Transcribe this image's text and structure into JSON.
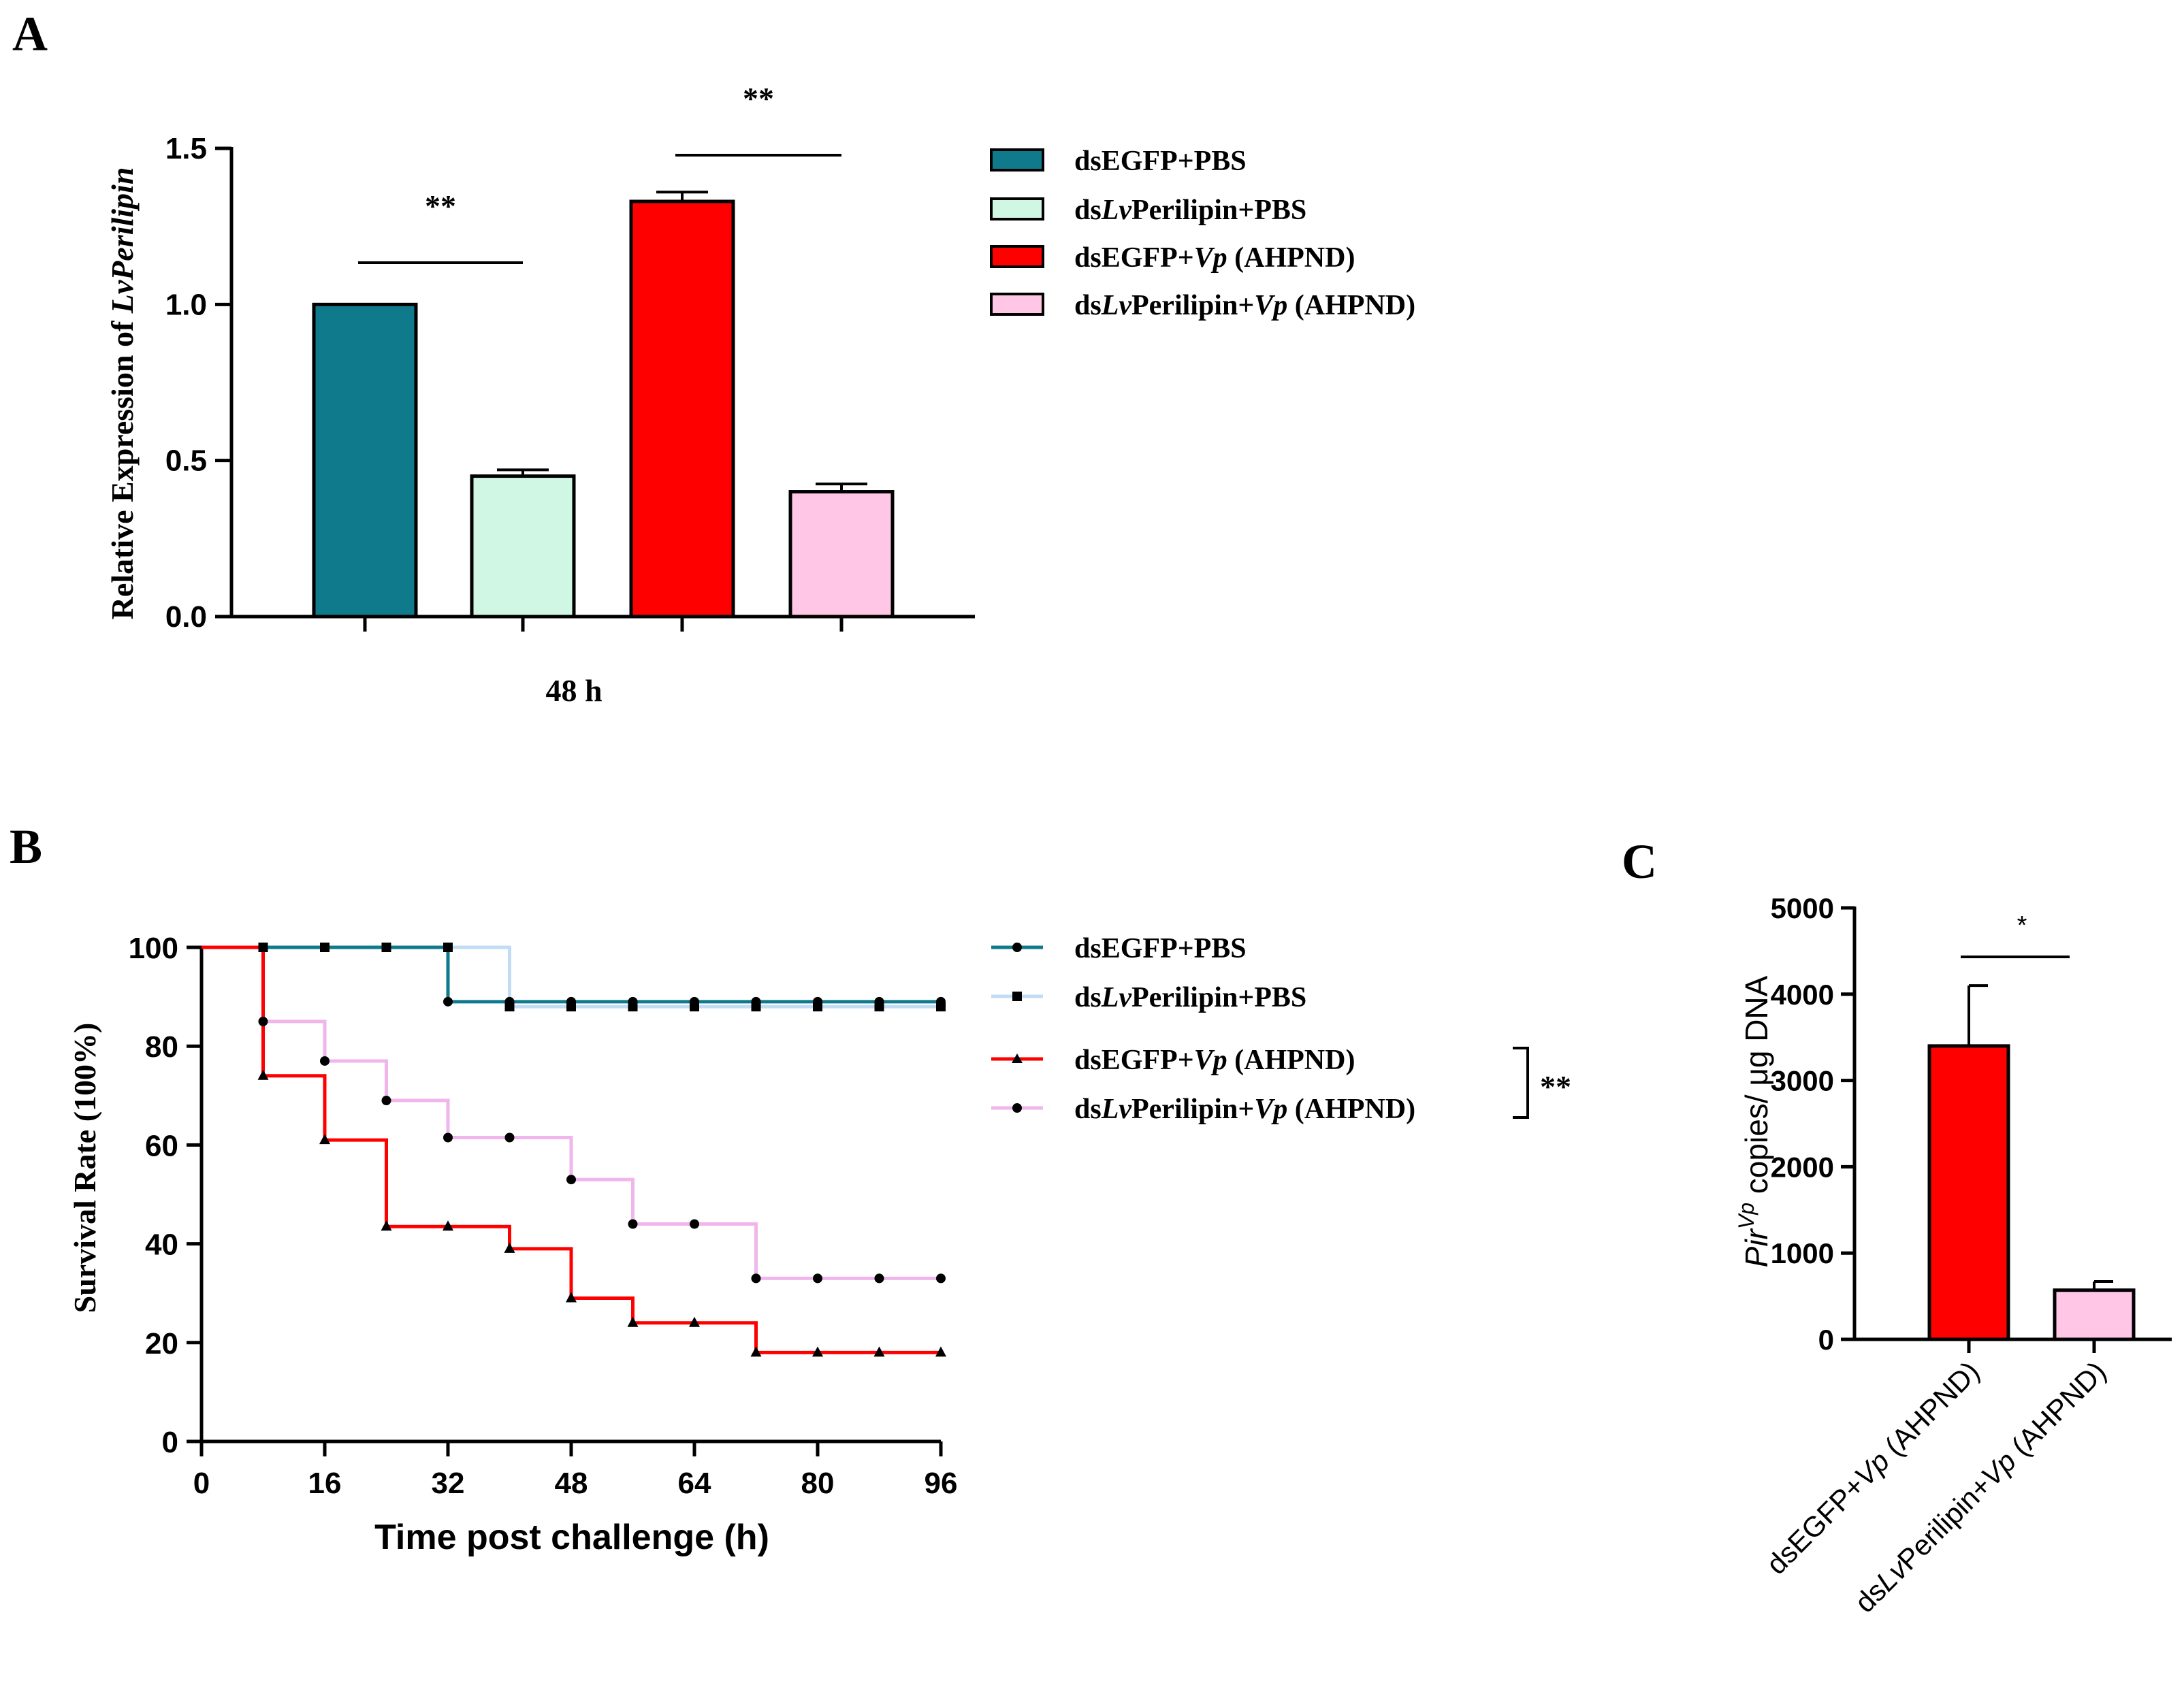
{
  "panel_labels": [
    "A",
    "B",
    "C"
  ],
  "series_styles": [
    {
      "color": "#0f7a8c",
      "fill": "#0f7a8c"
    },
    {
      "color": "#c2dcf5",
      "fill": "#cff7e4"
    },
    {
      "color": "#ff0000",
      "fill": "#ff0000"
    },
    {
      "color": "#f0b6ec",
      "fill": "#ffc6e6"
    }
  ],
  "legend": {
    "entries": [
      {
        "prefix": "ds",
        "mid_italic": "",
        "mid": "EGFP+",
        "italic2": "",
        "suffix": "PBS"
      },
      {
        "prefix": "ds",
        "mid_italic": "Lv",
        "mid": "Perilipin+",
        "italic2": "",
        "suffix": "PBS"
      },
      {
        "prefix": "ds",
        "mid_italic": "",
        "mid": "EGFP+",
        "italic2": "Vp",
        "suffix": " (AHPND)"
      },
      {
        "prefix": "ds",
        "mid_italic": "Lv",
        "mid": "Perilipin+",
        "italic2": "Vp",
        "suffix": " (AHPND)"
      }
    ]
  },
  "chart_data": [
    {
      "panel": "A",
      "type": "bar",
      "ylabel_plain": "Relative Expression of ",
      "ylabel_italic": "LvPerilipin",
      "xlabel": "48 h",
      "ylim": [
        0,
        1.5
      ],
      "yticks": [
        "0.0",
        "0.5",
        "1.0",
        "1.5"
      ],
      "ytick_values": [
        0,
        0.5,
        1.0,
        1.5
      ],
      "values": [
        1.0,
        0.45,
        1.33,
        0.4
      ],
      "errors": [
        0.0,
        0.02,
        0.03,
        0.025
      ],
      "significance": [
        {
          "from": 0,
          "to": 1,
          "label": "**"
        },
        {
          "from": 2,
          "to": 3,
          "label": "**"
        }
      ]
    },
    {
      "panel": "B",
      "type": "line",
      "step": true,
      "ylabel": "Survival Rate (100%)",
      "xlabel": "Time post challenge (h)",
      "xlim": [
        0,
        96
      ],
      "ylim": [
        0,
        100
      ],
      "xticks": [
        "0",
        "16",
        "32",
        "48",
        "64",
        "80",
        "96"
      ],
      "xtick_values": [
        0,
        16,
        32,
        48,
        64,
        80,
        96
      ],
      "yticks": [
        "0",
        "20",
        "40",
        "60",
        "80",
        "100"
      ],
      "ytick_values": [
        0,
        20,
        40,
        60,
        80,
        100
      ],
      "x": [
        0,
        8,
        16,
        24,
        32,
        40,
        48,
        56,
        64,
        72,
        80,
        88,
        96
      ],
      "series": [
        {
          "values": [
            100,
            100,
            100,
            100,
            89,
            89,
            89,
            89,
            89,
            89,
            89,
            89,
            89
          ],
          "marker": "circle"
        },
        {
          "values": [
            100,
            100,
            100,
            100,
            100,
            88,
            88,
            88,
            88,
            88,
            88,
            88,
            88
          ],
          "marker": "square"
        },
        {
          "values": [
            100,
            74,
            61,
            43.5,
            43.5,
            39,
            29,
            24,
            24,
            18,
            18,
            18,
            18
          ],
          "marker": "triangle"
        },
        {
          "values": [
            100,
            85,
            77,
            69,
            61.5,
            61.5,
            53,
            44,
            44,
            33,
            33,
            33,
            33
          ],
          "marker": "circle"
        }
      ],
      "significance": {
        "between": [
          2,
          3
        ],
        "label": "**"
      }
    },
    {
      "panel": "C",
      "type": "bar",
      "ylabel_italic": "Pir",
      "ylabel_sup": "Vp",
      "ylabel_plain": " copies/ μg DNA",
      "ylim": [
        0,
        5000
      ],
      "yticks": [
        "0",
        "1000",
        "2000",
        "3000",
        "4000",
        "5000"
      ],
      "ytick_values": [
        0,
        1000,
        2000,
        3000,
        4000,
        5000
      ],
      "categories": [
        {
          "prefix": "dsEGFP+",
          "italic_mid": "",
          "mid": "",
          "italic": "Vp",
          "suffix": " (AHPND)"
        },
        {
          "prefix": "ds",
          "italic_mid": "Lv",
          "mid": "Perilipin+",
          "italic": "Vp",
          "suffix": " (AHPND)"
        }
      ],
      "values": [
        3400,
        570
      ],
      "errors": [
        700,
        100
      ],
      "significance": [
        {
          "from": 0,
          "to": 1,
          "label": "*"
        }
      ]
    }
  ]
}
